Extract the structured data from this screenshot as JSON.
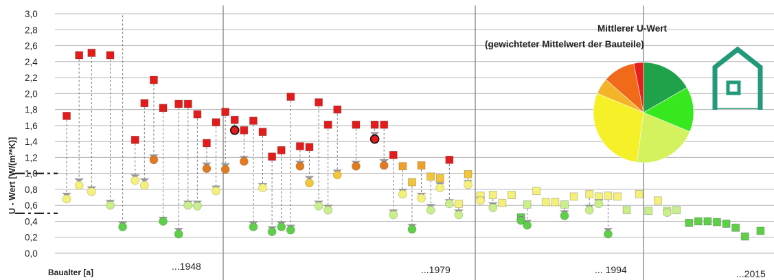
{
  "chart_data": {
    "type": "scatter",
    "title": "",
    "ylabel": "U - Wert [W/(m²*K)]",
    "xlabel": "Baualter [a]",
    "ylim": [
      0,
      3.0
    ],
    "ytick_labels": [
      "0,0",
      "0,2",
      "0,4",
      "0,6",
      "0,8",
      "1,0",
      "1,2",
      "1,4",
      "1,6",
      "1,8",
      "2,0",
      "2,2",
      "2,4",
      "2,6",
      "2,8",
      "3,0"
    ],
    "grid": true,
    "era_labels": [
      "...1948",
      "...1979",
      "... 1994",
      "...2015"
    ],
    "reference_levels": [
      1.0,
      0.5
    ],
    "colors": {
      "red": "#e31b1b",
      "orange": "#e07b22",
      "light_orange": "#f0a02a",
      "gold": "#f2c53a",
      "yellow": "#f2ee3a",
      "pale_yellow": "#f4f07a",
      "light_green": "#c9ef8a",
      "green": "#5fcf4a",
      "grey_tick": "#9a9a9a"
    },
    "points": [
      {
        "x": 1,
        "hi": 1.72,
        "hic": "red",
        "lo": 0.68,
        "loc": "pale_yellow",
        "tick": 0.74
      },
      {
        "x": 3,
        "hi": 2.48,
        "hic": "red",
        "lo": 0.85,
        "loc": "pale_yellow",
        "tick": 0.92
      },
      {
        "x": 5,
        "hi": 2.51,
        "hic": "red",
        "lo": 0.77,
        "loc": "pale_yellow",
        "tick": 0.82
      },
      {
        "x": 8,
        "hi": 2.48,
        "hic": "red",
        "lo": 0.6,
        "loc": "light_green",
        "tick": 0.65
      },
      {
        "x": 10,
        "hi": 2.98,
        "hic": "none",
        "lo": 0.33,
        "loc": "green",
        "tick": 0.38
      },
      {
        "x": 12,
        "hi": 1.42,
        "hic": "red",
        "lo": 0.91,
        "loc": "pale_yellow",
        "tick": 0.97
      },
      {
        "x": 13.5,
        "hi": 1.88,
        "hic": "red",
        "lo": 0.85,
        "loc": "pale_yellow",
        "tick": 0.92
      },
      {
        "x": 15,
        "hi": 2.17,
        "hic": "red",
        "lo": 1.17,
        "loc": "orange",
        "tick": 1.22
      },
      {
        "x": 16.5,
        "hi": 1.82,
        "hic": "red",
        "lo": 0.4,
        "loc": "green",
        "tick": 0.44
      },
      {
        "x": 19,
        "hi": 1.87,
        "hic": "red",
        "lo": 0.24,
        "loc": "green",
        "tick": 0.3
      },
      {
        "x": 20.5,
        "hi": 1.87,
        "hic": "red",
        "lo": 0.6,
        "loc": "light_green",
        "tick": 0.64
      },
      {
        "x": 22,
        "hi": 1.74,
        "hic": "red",
        "lo": 0.59,
        "loc": "light_green",
        "tick": 0.64
      },
      {
        "x": 23.5,
        "hi": 1.38,
        "hic": "red",
        "lo": 1.06,
        "loc": "orange",
        "tick": 1.12
      },
      {
        "x": 25,
        "hi": 1.64,
        "hic": "red",
        "lo": 0.78,
        "loc": "pale_yellow",
        "tick": 0.83
      },
      {
        "x": 26.5,
        "hi": 1.77,
        "hic": "red",
        "lo": 1.05,
        "loc": "orange",
        "tick": 1.11
      },
      {
        "x": 28,
        "hi": 1.67,
        "hic": "red",
        "lo": 1.54,
        "loc": "red",
        "tick": 1.52
      },
      {
        "x": 29.5,
        "hi": 1.54,
        "hic": "red",
        "lo": 1.15,
        "loc": "orange",
        "tick": 1.2
      },
      {
        "x": 31,
        "hi": 1.66,
        "hic": "red",
        "lo": 0.33,
        "loc": "green",
        "tick": 0.38
      },
      {
        "x": 32.5,
        "hi": 1.52,
        "hic": "red",
        "lo": 0.82,
        "loc": "pale_yellow",
        "tick": 0.86
      },
      {
        "x": 34,
        "hi": 1.21,
        "hic": "red",
        "lo": 0.27,
        "loc": "green",
        "tick": 0.32
      },
      {
        "x": 35.5,
        "hi": 1.29,
        "hic": "red",
        "lo": 0.33,
        "loc": "green",
        "tick": 0.38
      },
      {
        "x": 37,
        "hi": 1.96,
        "hic": "red",
        "lo": 0.29,
        "loc": "green",
        "tick": 0.34
      },
      {
        "x": 38.5,
        "hi": 1.34,
        "hic": "red",
        "lo": 1.09,
        "loc": "orange",
        "tick": 1.14
      },
      {
        "x": 40,
        "hi": 1.33,
        "hic": "red",
        "lo": 0.88,
        "loc": "gold",
        "tick": 0.95
      },
      {
        "x": 41.5,
        "hi": 1.89,
        "hic": "red",
        "lo": 0.59,
        "loc": "light_green",
        "tick": 0.64
      },
      {
        "x": 43,
        "hi": 1.61,
        "hic": "red",
        "lo": 0.54,
        "loc": "light_green",
        "tick": 0.59
      },
      {
        "x": 44.5,
        "hi": 1.8,
        "hic": "red",
        "lo": 0.98,
        "loc": "gold",
        "tick": 1.03
      },
      {
        "x": 47.5,
        "hi": 1.61,
        "hic": "red",
        "lo": 1.09,
        "loc": "orange",
        "tick": 1.14
      },
      {
        "x": 50.5,
        "hi": 1.61,
        "hic": "red",
        "lo": 1.43,
        "loc": "red",
        "tick": 1.5
      },
      {
        "x": 52,
        "hi": 1.61,
        "hic": "red",
        "lo": 1.1,
        "loc": "orange",
        "tick": 1.16
      },
      {
        "x": 53.5,
        "hi": 1.23,
        "hic": "red",
        "lo": 0.48,
        "loc": "light_green",
        "tick": 0.53
      },
      {
        "x": 55,
        "hi": 1.09,
        "hic": "light_orange",
        "lo": 0.74,
        "loc": "pale_yellow",
        "tick": 0.79
      },
      {
        "x": 56.5,
        "hi": 0.89,
        "hic": "gold",
        "lo": 0.3,
        "loc": "green",
        "tick": 0.35
      },
      {
        "x": 58,
        "hi": 1.1,
        "hic": "light_orange",
        "lo": 0.69,
        "loc": "pale_yellow",
        "tick": 0.74
      },
      {
        "x": 59.5,
        "hi": 0.96,
        "hic": "gold",
        "lo": 0.54,
        "loc": "light_green",
        "tick": 0.6
      },
      {
        "x": 61,
        "hi": 0.94,
        "hic": "gold",
        "lo": 0.82,
        "loc": "pale_yellow",
        "tick": 0.87
      },
      {
        "x": 62.5,
        "hi": 1.17,
        "hic": "red",
        "lo": 0.62,
        "loc": "light_green",
        "tick": 0.66
      },
      {
        "x": 64,
        "hi": 0.62,
        "hic": "pale_yellow",
        "lo": 0.48,
        "loc": "light_green",
        "tick": 0.53
      },
      {
        "x": 65.5,
        "hi": 0.99,
        "hic": "gold",
        "lo": 0.86,
        "loc": "pale_yellow",
        "tick": 0.9
      },
      {
        "x": 67.5,
        "hi": 0.72,
        "hic": "pale_yellow",
        "lo": 0.66,
        "loc": "pale_yellow",
        "tick": 0.69
      },
      {
        "x": 69.5,
        "hi": 0.73,
        "hic": "pale_yellow",
        "lo": 0.57,
        "loc": "light_green",
        "tick": 0.62
      },
      {
        "x": 71,
        "hi": 0.63,
        "hic": "pale_yellow",
        "lo": null,
        "loc": "",
        "tick": null
      },
      {
        "x": 72.5,
        "hi": 0.73,
        "hic": "pale_yellow",
        "lo": null,
        "loc": "",
        "tick": null
      },
      {
        "x": 74,
        "hi": 0.45,
        "hic": "green",
        "lo": 0.41,
        "loc": "green",
        "tick": 0.45
      },
      {
        "x": 75,
        "hi": 0.61,
        "hic": "light_green",
        "lo": 0.35,
        "loc": "green",
        "tick": 0.4
      },
      {
        "x": 76.5,
        "hi": 0.78,
        "hic": "pale_yellow",
        "lo": null,
        "loc": "",
        "tick": null
      },
      {
        "x": 78,
        "hi": 0.64,
        "hic": "pale_yellow",
        "lo": null,
        "loc": "",
        "tick": null
      },
      {
        "x": 79.5,
        "hi": 0.64,
        "hic": "pale_yellow",
        "lo": null,
        "loc": "",
        "tick": null
      },
      {
        "x": 81,
        "hi": 0.61,
        "hic": "light_green",
        "lo": 0.47,
        "loc": "green",
        "tick": 0.52
      },
      {
        "x": 82.5,
        "hi": 0.71,
        "hic": "pale_yellow",
        "lo": null,
        "loc": "",
        "tick": null
      },
      {
        "x": 85,
        "hi": 0.74,
        "hic": "pale_yellow",
        "lo": 0.54,
        "loc": "light_green",
        "tick": 0.59
      },
      {
        "x": 86.5,
        "hi": 0.71,
        "hic": "pale_yellow",
        "lo": 0.62,
        "loc": "light_green",
        "tick": 0.66
      },
      {
        "x": 88,
        "hi": 0.72,
        "hic": "pale_yellow",
        "lo": 0.24,
        "loc": "green",
        "tick": 0.3
      },
      {
        "x": 89.5,
        "hi": 0.71,
        "hic": "pale_yellow",
        "lo": null,
        "loc": "",
        "tick": null
      },
      {
        "x": 91,
        "hi": 0.54,
        "hic": "light_green",
        "lo": null,
        "loc": "",
        "tick": null
      },
      {
        "x": 93,
        "hi": 0.74,
        "hic": "pale_yellow",
        "lo": null,
        "loc": "",
        "tick": null
      },
      {
        "x": 94.5,
        "hi": 0.53,
        "hic": "light_green",
        "lo": null,
        "loc": "",
        "tick": null
      },
      {
        "x": 96,
        "hi": 0.66,
        "hic": "pale_yellow",
        "lo": null,
        "loc": "",
        "tick": null
      },
      {
        "x": 97.5,
        "hi": 0.53,
        "hic": "light_green",
        "lo": 0.51,
        "loc": "light_green",
        "tick": null
      },
      {
        "x": 99,
        "hi": 0.54,
        "hic": "light_green",
        "lo": null,
        "loc": "",
        "tick": null
      },
      {
        "x": 101,
        "hi": 0.38,
        "hic": "green",
        "lo": null,
        "loc": "",
        "tick": null
      },
      {
        "x": 102.5,
        "hi": 0.4,
        "hic": "green",
        "lo": null,
        "loc": "",
        "tick": null
      },
      {
        "x": 104,
        "hi": 0.4,
        "hic": "green",
        "lo": null,
        "loc": "",
        "tick": null
      },
      {
        "x": 105.5,
        "hi": 0.39,
        "hic": "green",
        "lo": null,
        "loc": "",
        "tick": null
      },
      {
        "x": 107,
        "hi": 0.37,
        "hic": "green",
        "lo": null,
        "loc": "",
        "tick": null
      },
      {
        "x": 108.5,
        "hi": 0.32,
        "hic": "green",
        "lo": null,
        "loc": "",
        "tick": null
      },
      {
        "x": 110,
        "hi": 0.21,
        "hic": "green",
        "lo": null,
        "loc": "",
        "tick": null
      },
      {
        "x": 112.5,
        "hi": 0.28,
        "hic": "green",
        "lo": null,
        "loc": "",
        "tick": null
      }
    ],
    "pie": {
      "title_line1": "Mittlerer U-Wert",
      "title_line2": "(gewichteter Mittelwert der Bauteile)",
      "slices": [
        {
          "value": 16,
          "color": "#1fa24a"
        },
        {
          "value": 14,
          "color": "#38e81f"
        },
        {
          "value": 20,
          "color": "#d3f25e"
        },
        {
          "value": 28,
          "color": "#f5f028"
        },
        {
          "value": 5,
          "color": "#f4b428"
        },
        {
          "value": 10,
          "color": "#f06a1a"
        },
        {
          "value": 3,
          "color": "#e8201c"
        }
      ]
    }
  }
}
